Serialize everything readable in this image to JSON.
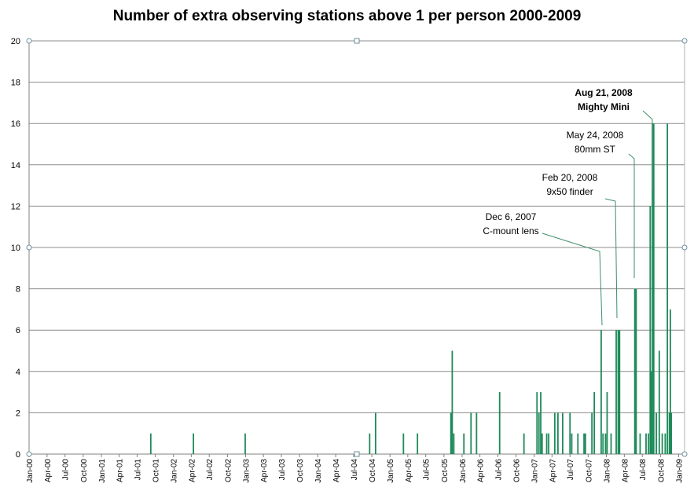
{
  "chart_data": {
    "type": "bar",
    "title": "Number of extra observing stations above 1 per person 2000-2009",
    "xlabel": "",
    "ylabel": "",
    "ylim": [
      0,
      20
    ],
    "yticks": [
      "0",
      "2",
      "4",
      "6",
      "8",
      "10",
      "12",
      "14",
      "16",
      "18",
      "20"
    ],
    "xlim": [
      "2000-01-01",
      "2009-01-31"
    ],
    "xticks": [
      {
        "date": "2000-01-01",
        "label": "Jan-00"
      },
      {
        "date": "2000-04-01",
        "label": "Apr-00"
      },
      {
        "date": "2000-07-01",
        "label": "Jul-00"
      },
      {
        "date": "2000-10-01",
        "label": "Oct-00"
      },
      {
        "date": "2001-01-01",
        "label": "Jan-01"
      },
      {
        "date": "2001-04-01",
        "label": "Apr-01"
      },
      {
        "date": "2001-07-01",
        "label": "Jul-01"
      },
      {
        "date": "2001-10-01",
        "label": "Oct-01"
      },
      {
        "date": "2002-01-01",
        "label": "Jan-02"
      },
      {
        "date": "2002-04-01",
        "label": "Apr-02"
      },
      {
        "date": "2002-07-01",
        "label": "Jul-02"
      },
      {
        "date": "2002-10-01",
        "label": "Oct-02"
      },
      {
        "date": "2003-01-01",
        "label": "Jan-03"
      },
      {
        "date": "2003-04-01",
        "label": "Apr-03"
      },
      {
        "date": "2003-07-01",
        "label": "Jul-03"
      },
      {
        "date": "2003-10-01",
        "label": "Oct-03"
      },
      {
        "date": "2004-01-01",
        "label": "Jan-04"
      },
      {
        "date": "2004-04-01",
        "label": "Apr-04"
      },
      {
        "date": "2004-07-01",
        "label": "Jul-04"
      },
      {
        "date": "2004-10-01",
        "label": "Oct-04"
      },
      {
        "date": "2005-01-01",
        "label": "Jan-05"
      },
      {
        "date": "2005-04-01",
        "label": "Apr-05"
      },
      {
        "date": "2005-07-01",
        "label": "Jul-05"
      },
      {
        "date": "2005-10-01",
        "label": "Oct-05"
      },
      {
        "date": "2006-01-01",
        "label": "Jan-06"
      },
      {
        "date": "2006-04-01",
        "label": "Apr-06"
      },
      {
        "date": "2006-07-01",
        "label": "Jul-06"
      },
      {
        "date": "2006-10-01",
        "label": "Oct-06"
      },
      {
        "date": "2007-01-01",
        "label": "Jan-07"
      },
      {
        "date": "2007-04-01",
        "label": "Apr-07"
      },
      {
        "date": "2007-07-01",
        "label": "Jul-07"
      },
      {
        "date": "2007-10-01",
        "label": "Oct-07"
      },
      {
        "date": "2008-01-01",
        "label": "Jan-08"
      },
      {
        "date": "2008-04-01",
        "label": "Apr-08"
      },
      {
        "date": "2008-07-01",
        "label": "Jul-08"
      },
      {
        "date": "2008-10-01",
        "label": "Oct-08"
      },
      {
        "date": "2009-01-01",
        "label": "Jan-09"
      }
    ],
    "grid": true,
    "bar_color": "#1e8a5a",
    "points": [
      {
        "x": "2001-09-08",
        "y": 1
      },
      {
        "x": "2002-04-12",
        "y": 1
      },
      {
        "x": "2002-12-30",
        "y": 1
      },
      {
        "x": "2004-09-20",
        "y": 1
      },
      {
        "x": "2004-10-20",
        "y": 2
      },
      {
        "x": "2005-03-10",
        "y": 1
      },
      {
        "x": "2005-05-20",
        "y": 1
      },
      {
        "x": "2005-11-05",
        "y": 2
      },
      {
        "x": "2005-11-12",
        "y": 5
      },
      {
        "x": "2005-11-20",
        "y": 1
      },
      {
        "x": "2006-01-10",
        "y": 1
      },
      {
        "x": "2006-02-15",
        "y": 2
      },
      {
        "x": "2006-03-15",
        "y": 2
      },
      {
        "x": "2006-07-10",
        "y": 3
      },
      {
        "x": "2006-11-10",
        "y": 1
      },
      {
        "x": "2007-01-15",
        "y": 3
      },
      {
        "x": "2007-01-25",
        "y": 2
      },
      {
        "x": "2007-02-03",
        "y": 3
      },
      {
        "x": "2007-02-10",
        "y": 1
      },
      {
        "x": "2007-03-05",
        "y": 1
      },
      {
        "x": "2007-03-15",
        "y": 1
      },
      {
        "x": "2007-04-15",
        "y": 2
      },
      {
        "x": "2007-05-01",
        "y": 2
      },
      {
        "x": "2007-05-25",
        "y": 2
      },
      {
        "x": "2007-07-01",
        "y": 2
      },
      {
        "x": "2007-07-10",
        "y": 1
      },
      {
        "x": "2007-08-10",
        "y": 1
      },
      {
        "x": "2007-09-10",
        "y": 1
      },
      {
        "x": "2007-09-17",
        "y": 1
      },
      {
        "x": "2007-10-20",
        "y": 2
      },
      {
        "x": "2007-11-01",
        "y": 3
      },
      {
        "x": "2007-12-06",
        "y": 6
      },
      {
        "x": "2007-12-15",
        "y": 1
      },
      {
        "x": "2007-12-28",
        "y": 1
      },
      {
        "x": "2008-01-05",
        "y": 3
      },
      {
        "x": "2008-01-25",
        "y": 1
      },
      {
        "x": "2008-02-20",
        "y": 6
      },
      {
        "x": "2008-03-01",
        "y": 6
      },
      {
        "x": "2008-03-08",
        "y": 6
      },
      {
        "x": "2008-05-24",
        "y": 8
      },
      {
        "x": "2008-05-31",
        "y": 8
      },
      {
        "x": "2008-06-20",
        "y": 1
      },
      {
        "x": "2008-07-20",
        "y": 1
      },
      {
        "x": "2008-08-01",
        "y": 1
      },
      {
        "x": "2008-08-10",
        "y": 12
      },
      {
        "x": "2008-08-15",
        "y": 4
      },
      {
        "x": "2008-08-21",
        "y": 16
      },
      {
        "x": "2008-08-28",
        "y": 16
      },
      {
        "x": "2008-09-10",
        "y": 2
      },
      {
        "x": "2008-09-25",
        "y": 5
      },
      {
        "x": "2008-10-10",
        "y": 1
      },
      {
        "x": "2008-10-25",
        "y": 1
      },
      {
        "x": "2008-11-05",
        "y": 16
      },
      {
        "x": "2008-11-15",
        "y": 2
      },
      {
        "x": "2008-11-20",
        "y": 7
      },
      {
        "x": "2008-11-25",
        "y": 2
      }
    ],
    "annotations": [
      {
        "lines": [
          "Dec 6, 2007",
          "C-mount lens"
        ],
        "x": "2007-12-06",
        "y": 6,
        "bold": false
      },
      {
        "lines": [
          "Feb 20, 2008",
          "9x50 finder"
        ],
        "x": "2008-02-20",
        "y": 6.5,
        "bold": false
      },
      {
        "lines": [
          "May 24, 2008",
          "80mm ST"
        ],
        "x": "2008-05-24",
        "y": 8.5,
        "bold": false
      },
      {
        "lines": [
          "Aug 21, 2008",
          "Mighty Mini"
        ],
        "x": "2008-08-21",
        "y": 12.8,
        "bold": true
      }
    ]
  }
}
